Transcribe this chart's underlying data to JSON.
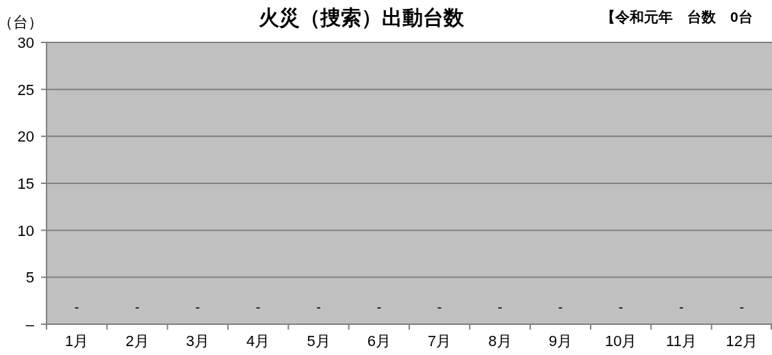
{
  "chart_data": {
    "type": "bar",
    "title": "火災（捜索）出動台数",
    "subtitle": "【令和元年　台数　0台",
    "ylabel": "（台）",
    "categories": [
      "1月",
      "2月",
      "3月",
      "4月",
      "5月",
      "6月",
      "7月",
      "8月",
      "9月",
      "10月",
      "11月",
      "12月"
    ],
    "values": [
      0,
      0,
      0,
      0,
      0,
      0,
      0,
      0,
      0,
      0,
      0,
      0
    ],
    "value_labels": [
      "-",
      "-",
      "-",
      "-",
      "-",
      "-",
      "-",
      "-",
      "-",
      "-",
      "-",
      "-"
    ],
    "ylim": [
      0,
      30
    ],
    "yticks": [
      {
        "value": 0,
        "label": "–"
      },
      5,
      10,
      15,
      20,
      25,
      30
    ],
    "grid": "y"
  }
}
